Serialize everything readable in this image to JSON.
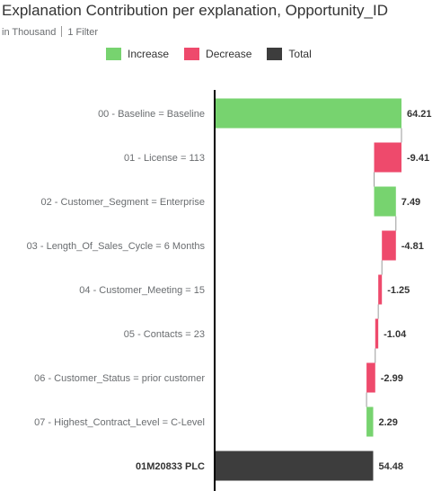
{
  "title": "Explanation Contribution per explanation, Opportunity_ID",
  "subtitle": {
    "unit": "in Thousand",
    "filters": "1 Filter"
  },
  "legend": [
    {
      "label": "Increase",
      "color": "#77d36f"
    },
    {
      "label": "Decrease",
      "color": "#ee4a6c"
    },
    {
      "label": "Total",
      "color": "#3d3d3d"
    }
  ],
  "chart_data": {
    "type": "bar",
    "subtype": "waterfall",
    "orientation": "horizontal",
    "categories": [
      "00 - Baseline = Baseline",
      "01 - License = 113",
      "02 - Customer_Segment = Enterprise",
      "03 - Length_Of_Sales_Cycle = 6 Months",
      "04 - Customer_Meeting = 15",
      "05 - Contacts = 23",
      "06 - Customer_Status = prior customer",
      "07 - Highest_Contract_Level = C-Level",
      "01M20833 PLC"
    ],
    "values": [
      64.21,
      -9.41,
      7.49,
      -4.81,
      -1.25,
      -1.04,
      -2.99,
      2.29,
      54.48
    ],
    "value_labels": [
      "64.21",
      "-9.41",
      "7.49",
      "-4.81",
      "-1.25",
      "-1.04",
      "-2.99",
      "2.29",
      "54.48"
    ],
    "kinds": [
      "increase",
      "decrease",
      "increase",
      "decrease",
      "decrease",
      "decrease",
      "decrease",
      "increase",
      "total"
    ],
    "xlim": [
      0,
      64.21
    ],
    "grid": false,
    "legend_position": "top"
  }
}
